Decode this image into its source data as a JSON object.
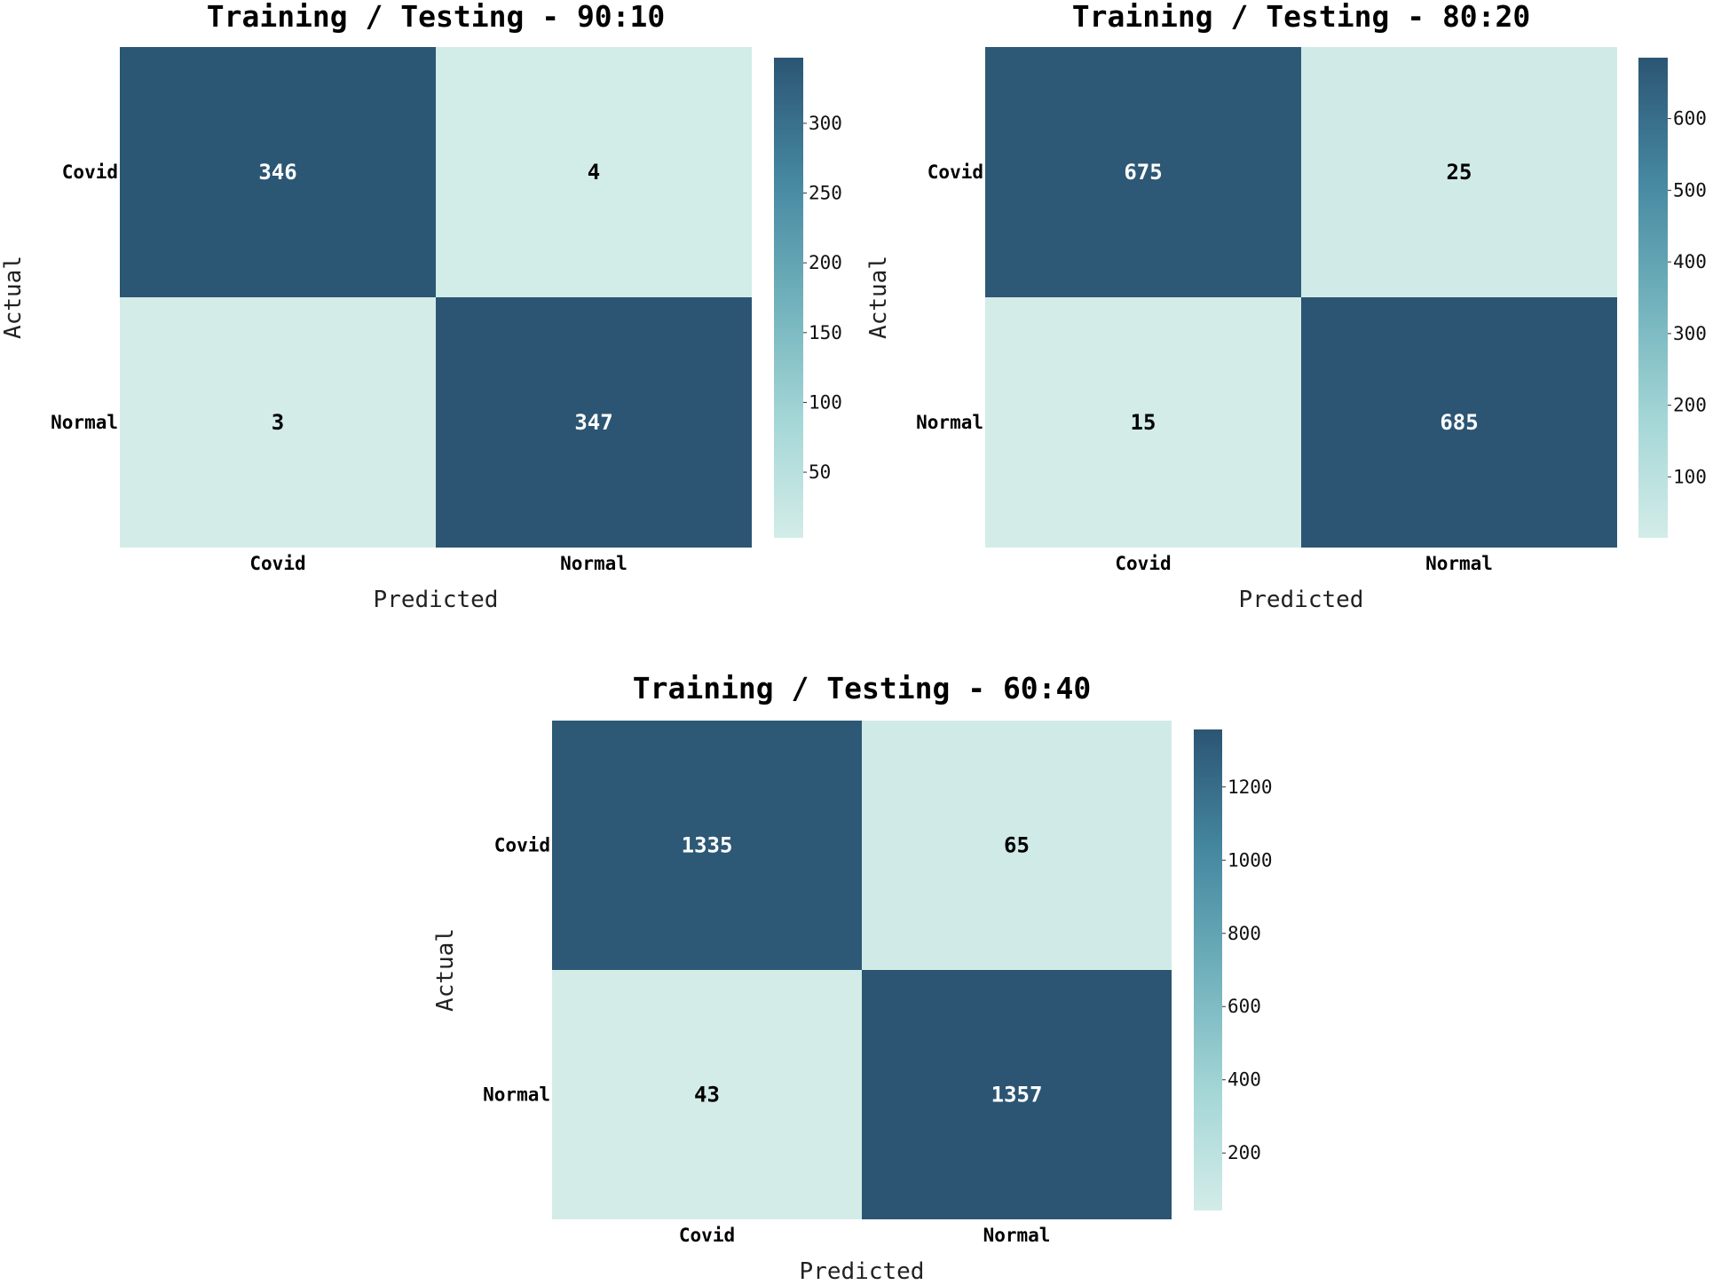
{
  "colors": {
    "low": "#d3ece8",
    "mid": "#6fb0bb",
    "high": "#2b5573",
    "text_dark": "#ffffff",
    "text_light": "#000000"
  },
  "chart_data": [
    {
      "type": "heatmap",
      "title": "Training / Testing - 90:10",
      "xlabel": "Predicted",
      "ylabel": "Actual",
      "x_categories": [
        "Covid",
        "Normal"
      ],
      "y_categories": [
        "Covid",
        "Normal"
      ],
      "values": [
        [
          346,
          4
        ],
        [
          3,
          347
        ]
      ],
      "colorbar": {
        "range": [
          3,
          347
        ],
        "ticks": [
          50,
          100,
          150,
          200,
          250,
          300
        ]
      }
    },
    {
      "type": "heatmap",
      "title": "Training / Testing - 80:20",
      "xlabel": "Predicted",
      "ylabel": "Actual",
      "x_categories": [
        "Covid",
        "Normal"
      ],
      "y_categories": [
        "Covid",
        "Normal"
      ],
      "values": [
        [
          675,
          25
        ],
        [
          15,
          685
        ]
      ],
      "colorbar": {
        "range": [
          15,
          685
        ],
        "ticks": [
          100,
          200,
          300,
          400,
          500,
          600
        ]
      }
    },
    {
      "type": "heatmap",
      "title": "Training / Testing - 60:40",
      "xlabel": "Predicted",
      "ylabel": "Actual",
      "x_categories": [
        "Covid",
        "Normal"
      ],
      "y_categories": [
        "Covid",
        "Normal"
      ],
      "values": [
        [
          1335,
          65
        ],
        [
          43,
          1357
        ]
      ],
      "colorbar": {
        "range": [
          43,
          1357
        ],
        "ticks": [
          200,
          400,
          600,
          800,
          1000,
          1200
        ]
      }
    }
  ]
}
